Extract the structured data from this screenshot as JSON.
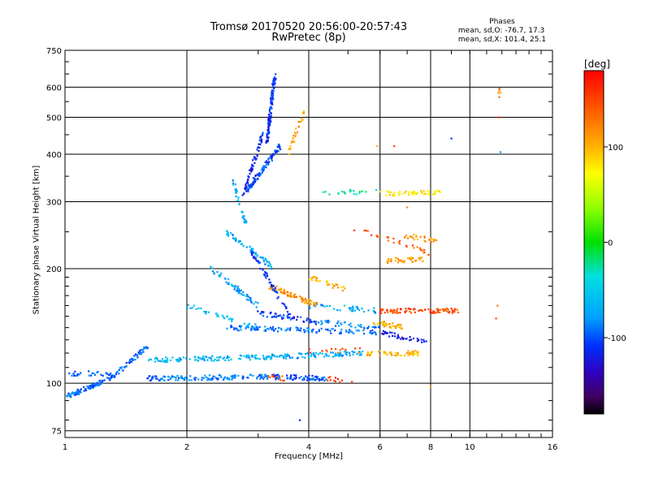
{
  "chart_data": {
    "type": "scatter",
    "title": "Tromsø 20170520 20:56:00-20:57:43",
    "subtitle": "RwPretec (8p)",
    "xlabel": "Frequency [MHz]",
    "ylabel": "Stationary phase Virtual Height [km]",
    "xscale": "log",
    "yscale": "log",
    "xlim": [
      1,
      16
    ],
    "ylim": [
      72,
      750
    ],
    "x_ticks": [
      1,
      2,
      4,
      6,
      8,
      10,
      16
    ],
    "x_tick_labels": [
      "1",
      "2",
      "4",
      "6",
      "8",
      "10",
      "16"
    ],
    "y_ticks": [
      75,
      100,
      200,
      300,
      400,
      500,
      600,
      750
    ],
    "y_tick_labels": [
      "75",
      "100",
      "200",
      "300",
      "400",
      "500",
      "600",
      "750"
    ],
    "grid": true,
    "colorbar": {
      "label": "[deg]",
      "range": [
        -180,
        180
      ],
      "ticks": [
        100,
        0,
        -100
      ],
      "tick_labels": [
        "100",
        "0",
        "-100"
      ]
    },
    "phase_stats": {
      "title": "Phases",
      "line_o": "mean, sd,O: -76.7, 17.3",
      "line_x": "mean, sd,X: 101.4, 25.1"
    },
    "traces": [
      {
        "x0": 1.0,
        "x1": 1.3,
        "y0": 92,
        "y1": 103,
        "phase": -95,
        "n": 80
      },
      {
        "x0": 1.3,
        "x1": 1.6,
        "y0": 103,
        "y1": 125,
        "phase": -95,
        "n": 60
      },
      {
        "x0": 1.0,
        "x1": 1.3,
        "y0": 106,
        "y1": 106,
        "phase": -95,
        "n": 30
      },
      {
        "x0": 1.6,
        "x1": 1.75,
        "y0": 103,
        "y1": 103,
        "phase": -100,
        "n": 20
      },
      {
        "x0": 1.75,
        "x1": 3.2,
        "y0": 103,
        "y1": 104,
        "phase": -85,
        "n": 110
      },
      {
        "x0": 3.2,
        "x1": 4.4,
        "y0": 104,
        "y1": 103,
        "phase": -100,
        "n": 70
      },
      {
        "x0": 3.1,
        "x1": 3.5,
        "y0": 104,
        "y1": 103,
        "phase": 150,
        "n": 12
      },
      {
        "x0": 4.4,
        "x1": 5.2,
        "y0": 103,
        "y1": 101,
        "phase": 160,
        "n": 12
      },
      {
        "x0": 1.6,
        "x1": 3.0,
        "y0": 115,
        "y1": 117,
        "phase": -65,
        "n": 100
      },
      {
        "x0": 3.0,
        "x1": 5.5,
        "y0": 117,
        "y1": 120,
        "phase": -70,
        "n": 110
      },
      {
        "x0": 5.5,
        "x1": 7.5,
        "y0": 120,
        "y1": 120,
        "phase": 100,
        "n": 60
      },
      {
        "x0": 4.0,
        "x1": 5.5,
        "y0": 122,
        "y1": 122,
        "phase": 140,
        "n": 14
      },
      {
        "x0": 2.0,
        "x1": 3.0,
        "y0": 160,
        "y1": 140,
        "phase": -60,
        "n": 40
      },
      {
        "x0": 2.5,
        "x1": 6.0,
        "y0": 140,
        "y1": 136,
        "phase": -90,
        "n": 120
      },
      {
        "x0": 3.0,
        "x1": 4.2,
        "y0": 153,
        "y1": 145,
        "phase": -110,
        "n": 50
      },
      {
        "x0": 4.2,
        "x1": 6.0,
        "y0": 145,
        "y1": 140,
        "phase": -90,
        "n": 40
      },
      {
        "x0": 6.0,
        "x1": 7.8,
        "y0": 136,
        "y1": 128,
        "phase": -120,
        "n": 40
      },
      {
        "x0": 4.0,
        "x1": 6.0,
        "y0": 160,
        "y1": 155,
        "phase": -75,
        "n": 40
      },
      {
        "x0": 6.0,
        "x1": 9.3,
        "y0": 155,
        "y1": 155,
        "phase": 150,
        "n": 90
      },
      {
        "x0": 3.2,
        "x1": 4.2,
        "y0": 180,
        "y1": 160,
        "phase": 115,
        "n": 70
      },
      {
        "x0": 4.0,
        "x1": 5.0,
        "y0": 190,
        "y1": 175,
        "phase": 100,
        "n": 30
      },
      {
        "x0": 5.8,
        "x1": 6.8,
        "y0": 145,
        "y1": 140,
        "phase": 100,
        "n": 40
      },
      {
        "x0": 2.5,
        "x1": 3.3,
        "y0": 250,
        "y1": 200,
        "phase": -70,
        "n": 60
      },
      {
        "x0": 2.3,
        "x1": 3.0,
        "y0": 200,
        "y1": 160,
        "phase": -75,
        "n": 60
      },
      {
        "x0": 2.9,
        "x1": 3.6,
        "y0": 220,
        "y1": 150,
        "phase": -110,
        "n": 60
      },
      {
        "x0": 2.6,
        "x1": 2.8,
        "y0": 340,
        "y1": 260,
        "phase": -70,
        "n": 40
      },
      {
        "x0": 2.8,
        "x1": 3.4,
        "y0": 320,
        "y1": 420,
        "phase": -100,
        "n": 120
      },
      {
        "x0": 3.15,
        "x1": 3.3,
        "y0": 430,
        "y1": 650,
        "phase": -110,
        "n": 110
      },
      {
        "x0": 2.75,
        "x1": 3.1,
        "y0": 310,
        "y1": 460,
        "phase": -115,
        "n": 60
      },
      {
        "x0": 3.55,
        "x1": 3.9,
        "y0": 400,
        "y1": 520,
        "phase": 110,
        "n": 30
      },
      {
        "x0": 6.0,
        "x1": 8.5,
        "y0": 315,
        "y1": 318,
        "phase": 80,
        "n": 50
      },
      {
        "x0": 4.2,
        "x1": 6.0,
        "y0": 318,
        "y1": 318,
        "phase": -30,
        "n": 20
      },
      {
        "x0": 6.2,
        "x1": 7.6,
        "y0": 210,
        "y1": 212,
        "phase": 110,
        "n": 40
      },
      {
        "x0": 6.8,
        "x1": 8.5,
        "y0": 245,
        "y1": 235,
        "phase": 110,
        "n": 25
      },
      {
        "x0": 5.0,
        "x1": 8.0,
        "y0": 260,
        "y1": 220,
        "phase": 140,
        "n": 30
      },
      {
        "x0": 11.7,
        "x1": 11.9,
        "y0": 560,
        "y1": 600,
        "phase": 120,
        "n": 6
      }
    ],
    "points": [
      {
        "x": 3.8,
        "y": 80,
        "phase": -110
      },
      {
        "x": 8.0,
        "y": 98,
        "phase": 110
      },
      {
        "x": 9.0,
        "y": 440,
        "phase": -110
      },
      {
        "x": 6.5,
        "y": 420,
        "phase": 150
      },
      {
        "x": 11.8,
        "y": 500,
        "phase": 160
      },
      {
        "x": 11.9,
        "y": 405,
        "phase": -80
      },
      {
        "x": 11.6,
        "y": 148,
        "phase": 150
      },
      {
        "x": 11.7,
        "y": 160,
        "phase": 130
      },
      {
        "x": 5.9,
        "y": 420,
        "phase": 100
      },
      {
        "x": 4.9,
        "y": 160,
        "phase": -40
      },
      {
        "x": 7.0,
        "y": 290,
        "phase": 120
      }
    ]
  }
}
